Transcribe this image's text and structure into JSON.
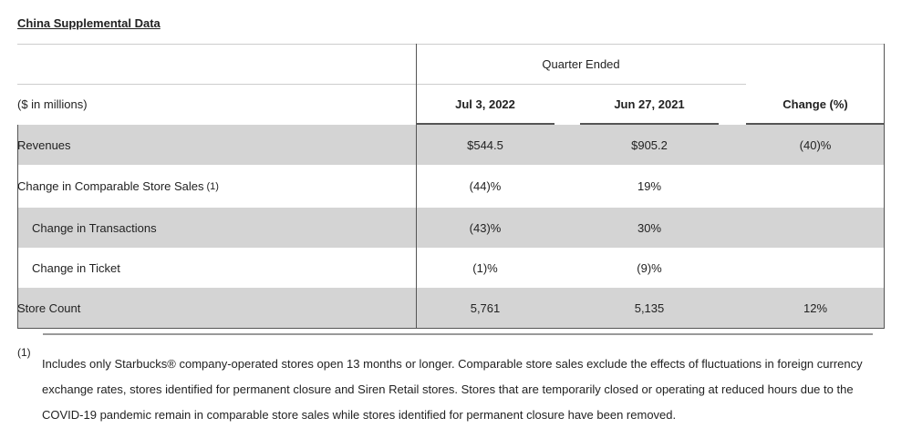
{
  "title": "China Supplemental Data",
  "table": {
    "group_header": "Quarter Ended",
    "columns": {
      "label": "($ in millions)",
      "col1": "Jul 3, 2022",
      "col2": "Jun 27, 2021",
      "col3": "Change (%)"
    },
    "rows": [
      {
        "label": "Revenues",
        "col1": "$544.5",
        "col2": "$905.2",
        "col3": "(40)%"
      },
      {
        "label": "Change in Comparable Store Sales",
        "note": "(1)",
        "col1": "(44)%",
        "col2": "19%",
        "col3": ""
      },
      {
        "label": "Change in Transactions",
        "col1": "(43)%",
        "col2": "30%",
        "col3": ""
      },
      {
        "label": "Change in Ticket",
        "col1": "(1)%",
        "col2": "(9)%",
        "col3": ""
      },
      {
        "label": "Store Count",
        "col1": "5,761",
        "col2": "5,135",
        "col3": "12%"
      }
    ]
  },
  "footnote": {
    "marker": "(1)",
    "text": "Includes only Starbucks® company-operated stores open 13 months or longer. Comparable store sales exclude the effects of fluctuations in foreign currency exchange rates, stores identified for permanent closure and Siren Retail stores. Stores that are temporarily closed or operating at reduced hours due to the COVID-19 pandemic remain in comparable store sales while stores identified for permanent closure have been removed."
  }
}
